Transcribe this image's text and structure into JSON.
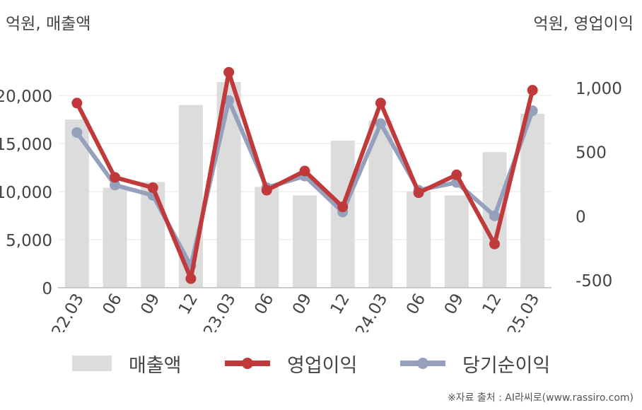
{
  "units": {
    "left": "억원, 매출액",
    "right": "억원, 영업이익"
  },
  "legend": {
    "revenue": "매출액",
    "op_profit": "영업이익",
    "net_profit": "당기순이익"
  },
  "source": "※자료 출처 : AI라씨로(www.rassiro.com)",
  "colors": {
    "bar": "#dcdcdc",
    "op_profit": "#c0393b",
    "net_profit": "#94a0bc",
    "axis": "#bbbbbb",
    "grid": "#e6e6e6"
  },
  "chart_data": {
    "type": "bar",
    "categories": [
      "22.03",
      "06",
      "09",
      "12",
      "23.03",
      "06",
      "09",
      "12",
      "24.03",
      "06",
      "09",
      "12",
      "25.03"
    ],
    "series": [
      {
        "name": "매출액",
        "type": "bar",
        "axis": "left",
        "values": [
          17500,
          10400,
          11000,
          19000,
          21400,
          10500,
          9600,
          15300,
          17400,
          10000,
          9600,
          14100,
          18100
        ]
      },
      {
        "name": "영업이익",
        "type": "line",
        "axis": "right",
        "values": [
          880,
          300,
          220,
          -490,
          1120,
          200,
          350,
          70,
          880,
          180,
          320,
          -220,
          980
        ]
      },
      {
        "name": "당기순이익",
        "type": "line",
        "axis": "right",
        "values": [
          650,
          240,
          160,
          -390,
          900,
          220,
          310,
          30,
          720,
          200,
          260,
          0,
          820
        ]
      }
    ],
    "y_left": {
      "ylim": [
        0,
        21400
      ],
      "ticks": [
        0,
        5000,
        10000,
        15000,
        20000
      ],
      "tick_labels": [
        "0",
        "5,000",
        "10,000",
        "15,000",
        "20,000"
      ]
    },
    "y_right": {
      "ylim": [
        -500,
        1000
      ],
      "ticks": [
        -500,
        0,
        500,
        1000
      ],
      "tick_labels": [
        "-500",
        "0",
        "500",
        "1,000"
      ]
    },
    "grid": true,
    "legend_position": "bottom"
  }
}
